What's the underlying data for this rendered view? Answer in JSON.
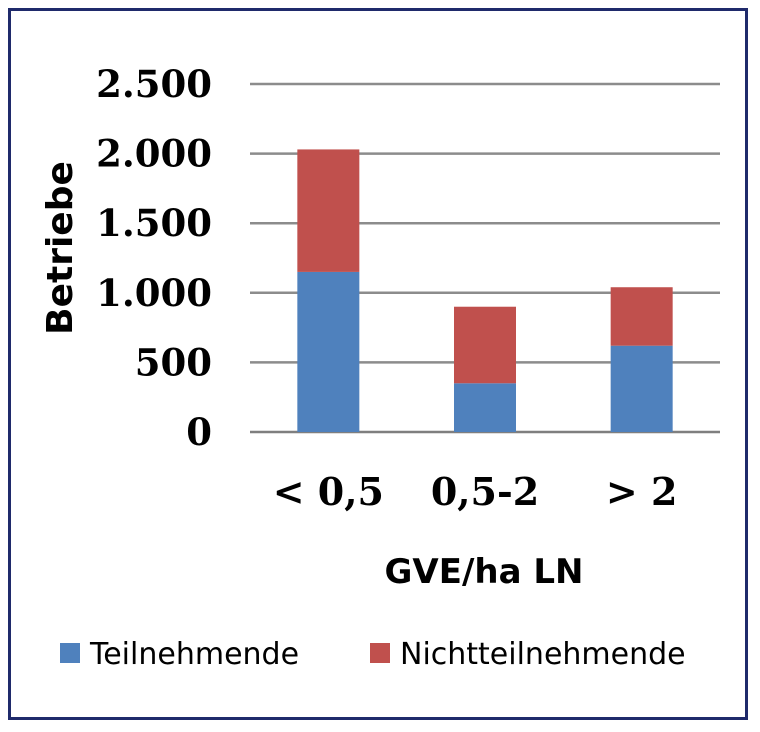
{
  "chart_data": {
    "type": "bar",
    "stacked": true,
    "categories": [
      "< 0,5",
      "0,5-2",
      "> 2"
    ],
    "series": [
      {
        "name": "Teilnehmende",
        "values": [
          1150,
          350,
          620
        ],
        "color": "#4f81bd"
      },
      {
        "name": "Nichtteilnehmende",
        "values": [
          880,
          550,
          420
        ],
        "color": "#c0504d"
      }
    ],
    "ylim": [
      0,
      2500
    ],
    "yticks": [
      0,
      500,
      1000,
      1500,
      2000,
      2500
    ],
    "ytick_labels": [
      "0",
      "500",
      "1.000",
      "1.500",
      "2.000",
      "2.500"
    ],
    "ylabel": "Betriebe",
    "xlabel": "GVE/ha LN",
    "grid": true,
    "legend_position": "bottom",
    "border_color": "#1f2a6b",
    "grid_color": "#8c8c8c"
  }
}
